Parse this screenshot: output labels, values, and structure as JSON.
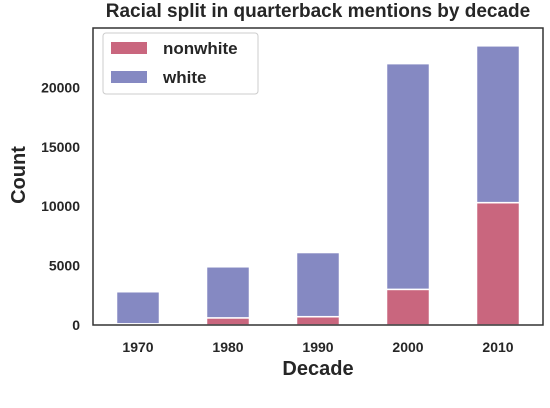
{
  "chart_data": {
    "type": "bar",
    "stacked": true,
    "title": "Racial split in quarterback mentions by decade",
    "xlabel": "Decade",
    "ylabel": "Count",
    "categories": [
      "1970",
      "1980",
      "1990",
      "2000",
      "2010"
    ],
    "series": [
      {
        "name": "nonwhite",
        "color": "#c9667e",
        "values": [
          100,
          600,
          700,
          3000,
          10300
        ]
      },
      {
        "name": "white",
        "color": "#8589c2",
        "values": [
          2700,
          4300,
          5400,
          19000,
          13200
        ]
      }
    ],
    "ylim": [
      0,
      25000
    ],
    "yticks": [
      0,
      5000,
      10000,
      15000,
      20000
    ],
    "grid": false,
    "legend": "top-left"
  }
}
